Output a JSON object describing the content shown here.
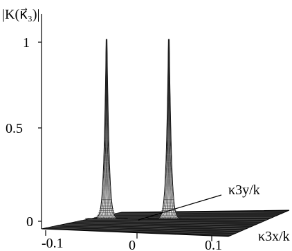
{
  "chart_data": {
    "type": "surface",
    "zlabel": "|K(κ⃗₃)|",
    "xlabel": "κ3x/k",
    "ylabel": "κ3y/k",
    "x_ticks": [
      "-0.1",
      "0",
      "0.1"
    ],
    "z_ticks": [
      "0",
      "0.5",
      "1"
    ],
    "x_range": [
      -0.12,
      0.12
    ],
    "z_range": [
      0,
      1
    ],
    "peaks": [
      {
        "x": -0.04,
        "y": 0,
        "z": 1.0
      },
      {
        "x": 0.04,
        "y": 0,
        "z": 1.0
      }
    ]
  }
}
